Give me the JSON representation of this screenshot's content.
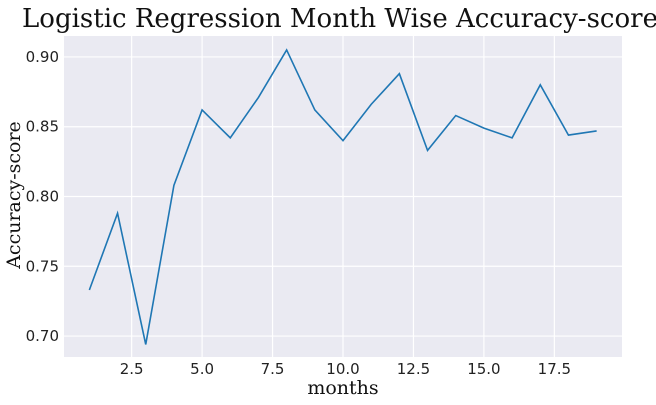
{
  "chart_data": {
    "type": "line",
    "title": "Logistic Regression Month Wise Accuracy-score",
    "xlabel": "months",
    "ylabel": "Accuracy-score",
    "xlim": [
      0.1,
      19.9
    ],
    "ylim": [
      0.685,
      0.915
    ],
    "xticks": [
      2.5,
      5.0,
      7.5,
      10.0,
      12.5,
      15.0,
      17.5
    ],
    "xtick_labels": [
      "2.5",
      "5.0",
      "7.5",
      "10.0",
      "12.5",
      "15.0",
      "17.5"
    ],
    "yticks": [
      0.7,
      0.75,
      0.8,
      0.85,
      0.9
    ],
    "ytick_labels": [
      "0.70",
      "0.75",
      "0.80",
      "0.85",
      "0.90"
    ],
    "grid": true,
    "background": "#eaeaf2",
    "line_color": "#1f77b4",
    "x": [
      1,
      2,
      3,
      4,
      5,
      6,
      7,
      8,
      9,
      10,
      11,
      12,
      13,
      14,
      15,
      16,
      17,
      18,
      19
    ],
    "series": [
      {
        "values": [
          0.733,
          0.788,
          0.694,
          0.808,
          0.862,
          0.842,
          0.871,
          0.905,
          0.862,
          0.84,
          0.866,
          0.888,
          0.833,
          0.858,
          0.849,
          0.842,
          0.88,
          0.844,
          0.847
        ]
      }
    ]
  }
}
